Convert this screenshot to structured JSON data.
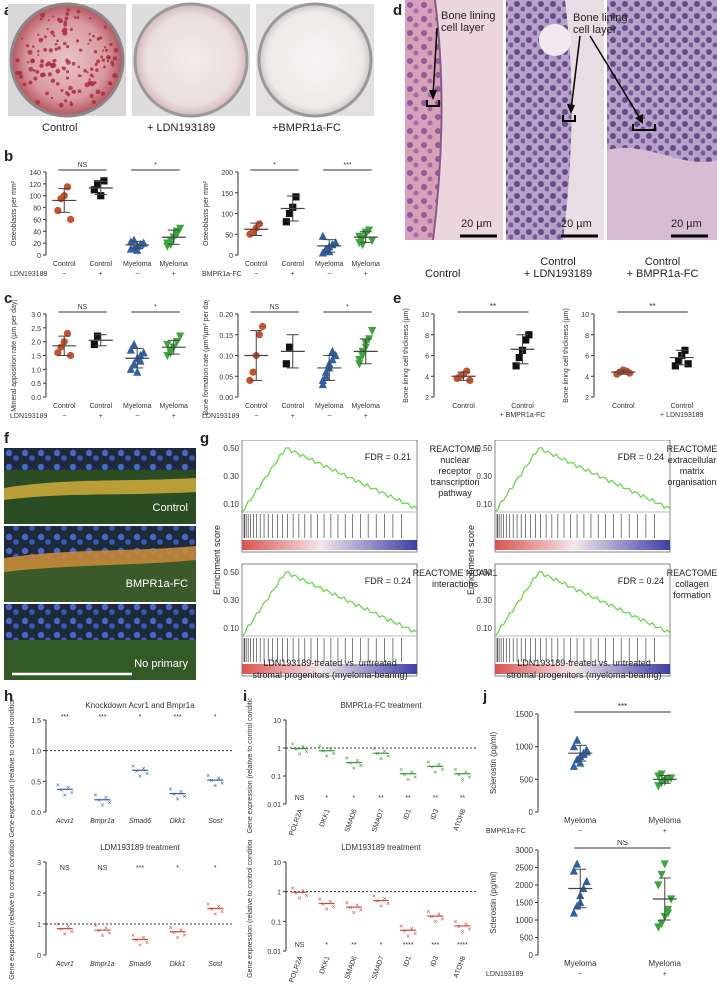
{
  "panels": {
    "a": {
      "label": "a",
      "captions": [
        "Control",
        "+ LDN193189",
        "+BMPR1a-FC"
      ]
    },
    "b": {
      "label": "b",
      "charts": [
        {
          "ylabel": "Osteoblasts per mm²",
          "yticks": [
            "0",
            "20",
            "40",
            "60",
            "80",
            "100",
            "120",
            "140"
          ],
          "treatment": "LDN193189",
          "groups": [
            "Control",
            "Control",
            "Myeloma",
            "Myeloma"
          ],
          "signs": [
            "−",
            "+",
            "−",
            "+"
          ],
          "sig": [
            "NS",
            "*"
          ]
        },
        {
          "ylabel": "Osteoblasts per mm²",
          "yticks": [
            "0",
            "50",
            "100",
            "150",
            "200"
          ],
          "treatment": "BMPR1a-FC",
          "groups": [
            "Control",
            "Control",
            "Myeloma",
            "Myeloma"
          ],
          "signs": [
            "−",
            "+",
            "−",
            "+"
          ],
          "sig": [
            "*",
            "***"
          ]
        }
      ]
    },
    "c": {
      "label": "c",
      "charts": [
        {
          "ylabel": "Mineral apposition rate (µm per day)",
          "yticks": [
            "0.0",
            "0.5",
            "1.0",
            "1.5",
            "2.0",
            "2.5",
            "3.0"
          ],
          "treatment": "LDN193189",
          "groups": [
            "Control",
            "Control",
            "Myeloma",
            "Myeloma"
          ],
          "signs": [
            "−",
            "+",
            "−",
            "+"
          ],
          "sig": [
            "NS",
            "*"
          ]
        },
        {
          "ylabel": "Bone formation rate (µm³/µm² per day)",
          "yticks": [
            "0.00",
            "0.05",
            "0.10",
            "0.15",
            "0.20"
          ],
          "treatment": "LDN193189",
          "groups": [
            "Control",
            "Control",
            "Myeloma",
            "Myeloma"
          ],
          "signs": [
            "−",
            "+",
            "−",
            "+"
          ],
          "sig": [
            "NS",
            "*"
          ]
        }
      ]
    },
    "d": {
      "label": "d",
      "annot": "Bone lining cell layer",
      "scale": "20 µm",
      "captions": [
        "Control",
        "Control\n+ LDN193189",
        "Control\n+ BMPR1a-FC"
      ]
    },
    "e": {
      "label": "e",
      "charts": [
        {
          "ylabel": "Bone lining cell thickness (µm)",
          "yticks": [
            "2",
            "4",
            "6",
            "8",
            "10"
          ],
          "groups": [
            "Control",
            "Control\n+ BMPR1a-FC"
          ],
          "sig": "**"
        },
        {
          "ylabel": "Bone lining cell thickness (µm)",
          "yticks": [
            "2",
            "4",
            "6",
            "8",
            "10"
          ],
          "groups": [
            "Control",
            "Control\n+ LDN193189"
          ],
          "sig": "**"
        }
      ]
    },
    "f": {
      "label": "f",
      "captions": [
        "Control",
        "BMPR1a-FC",
        "No primary"
      ]
    },
    "g": {
      "label": "g",
      "ylabel": "Enrichment score",
      "yticks": [
        "0.50",
        "0.30",
        "0.10"
      ],
      "xlabel": "LDN193189-treated vs. untreated stromal progenitors (myeloma-bearing)",
      "plots": [
        {
          "fdr": "FDR = 0.21",
          "title": "REACTOME nuclear receptor transcription pathway"
        },
        {
          "fdr": "FDR = 0.24",
          "title": "REACTOME NCAM1 interactions"
        },
        {
          "fdr": "FDR = 0.24",
          "title": "REACTOME extracellular matrix organisation"
        },
        {
          "fdr": "FDR = 0.24",
          "title": "REACTOME collagen formation"
        }
      ]
    },
    "h": {
      "label": "h",
      "ylabel": "Gene expression (relative to control condition)",
      "charts": [
        {
          "title": "Knockdown Acvr1 and Bmpr1a",
          "yticks": [
            "0.0",
            "0.5",
            "1.0",
            "1.5"
          ],
          "genes": [
            "Acvr1",
            "Bmpr1a",
            "Smad6",
            "Dkk1",
            "Sost"
          ],
          "sig": [
            "***",
            "***",
            "*",
            "***",
            "*"
          ]
        },
        {
          "title": "LDM193189 treatment",
          "yticks": [
            "0",
            "1",
            "2",
            "3"
          ],
          "genes": [
            "Acvr1",
            "Bmpr1a",
            "Smad6",
            "Dkk1",
            "Sost"
          ],
          "sig": [
            "NS",
            "NS",
            "***",
            "*",
            "*"
          ]
        }
      ]
    },
    "i": {
      "label": "i",
      "ylabel": "Gene expression (relative to control condition)",
      "charts": [
        {
          "title": "BMPR1a-FC treatment",
          "yticks": [
            "10",
            "1",
            "0.1",
            "0.01"
          ],
          "genes": [
            "POLR2A",
            "DKK1",
            "SMAD6",
            "SMAD7",
            "ID1",
            "ID3",
            "ATOH8"
          ],
          "sig": [
            "NS",
            "*",
            "*",
            "**",
            "**",
            "**",
            "**"
          ]
        },
        {
          "title": "LDM193189 treatment",
          "yticks": [
            "10",
            "1",
            "0.1",
            "0.01"
          ],
          "genes": [
            "POLR2A",
            "DKK1",
            "SMAD6",
            "SMAD7",
            "ID1",
            "ID3",
            "ATOH8"
          ],
          "sig": [
            "NS",
            "*",
            "**",
            "*",
            "****",
            "***",
            "****"
          ]
        }
      ]
    },
    "j": {
      "label": "j",
      "charts": [
        {
          "ylabel": "Sclerostin (pg/ml)",
          "yticks": [
            "0",
            "500",
            "1000",
            "1500"
          ],
          "groups": [
            "Myeloma",
            "Myeloma"
          ],
          "treatment": "BMPR1a-FC",
          "signs": [
            "−",
            "+"
          ],
          "sig": "***"
        },
        {
          "ylabel": "Sclerostin (pg/ml)",
          "yticks": [
            "0",
            "500",
            "1000",
            "1500",
            "2000",
            "2500",
            "3000"
          ],
          "groups": [
            "Myeloma",
            "Myeloma"
          ],
          "treatment": "LDN193189",
          "signs": [
            "−",
            "+"
          ],
          "sig": "NS"
        }
      ]
    }
  },
  "chart_data": [
    {
      "id": "b1",
      "type": "scatter",
      "ylim": [
        0,
        140
      ],
      "groups": [
        "Control",
        "Control",
        "Myeloma",
        "Myeloma"
      ],
      "colors": [
        "#c8502a",
        "#111111",
        "#2f5fa8",
        "#3aa53a"
      ],
      "markers": [
        "circle",
        "square",
        "triangle",
        "invtriangle"
      ],
      "values": [
        [
          75,
          95,
          100,
          115,
          60
        ],
        [
          110,
          120,
          100,
          125
        ],
        [
          10,
          12,
          15,
          18,
          20,
          22,
          25,
          8
        ],
        [
          15,
          25,
          30,
          35,
          45,
          20,
          18,
          30,
          40
        ]
      ],
      "mean": [
        92,
        113,
        17,
        30
      ],
      "sd": [
        20,
        11,
        6,
        12
      ]
    },
    {
      "id": "b2",
      "type": "scatter",
      "ylim": [
        0,
        200
      ],
      "groups": [
        "Control",
        "Control",
        "Myeloma",
        "Myeloma"
      ],
      "colors": [
        "#c8502a",
        "#111111",
        "#2f5fa8",
        "#3aa53a"
      ],
      "markers": [
        "circle",
        "square",
        "triangle",
        "invtriangle"
      ],
      "values": [
        [
          50,
          55,
          65,
          75
        ],
        [
          80,
          100,
          115,
          140
        ],
        [
          5,
          10,
          20,
          25,
          30,
          45,
          15,
          8
        ],
        [
          30,
          40,
          50,
          60,
          35,
          45,
          25,
          55
        ]
      ],
      "mean": [
        62,
        112,
        22,
        43
      ],
      "sd": [
        15,
        30,
        15,
        13
      ]
    },
    {
      "id": "c1",
      "type": "scatter",
      "ylim": [
        0,
        3
      ],
      "groups": [
        "Control",
        "Control",
        "Myeloma",
        "Myeloma"
      ],
      "colors": [
        "#c8502a",
        "#111111",
        "#2f5fa8",
        "#3aa53a"
      ],
      "markers": [
        "circle",
        "square",
        "triangle",
        "invtriangle"
      ],
      "values": [
        [
          1.6,
          1.8,
          2.0,
          2.3,
          1.5
        ],
        [
          1.9,
          2.2
        ],
        [
          1.0,
          1.2,
          1.4,
          1.5,
          1.6,
          1.7,
          1.9,
          0.9,
          1.3
        ],
        [
          1.5,
          1.7,
          1.8,
          2.0,
          2.2,
          1.9,
          1.6,
          1.8
        ]
      ],
      "mean": [
        1.85,
        2.05,
        1.4,
        1.8
      ],
      "sd": [
        0.35,
        0.2,
        0.35,
        0.25
      ]
    },
    {
      "id": "c2",
      "type": "scatter",
      "ylim": [
        0,
        0.2
      ],
      "groups": [
        "Control",
        "Control",
        "Myeloma",
        "Myeloma"
      ],
      "colors": [
        "#c8502a",
        "#111111",
        "#2f5fa8",
        "#3aa53a"
      ],
      "markers": [
        "circle",
        "square",
        "triangle",
        "invtriangle"
      ],
      "values": [
        [
          0.04,
          0.06,
          0.1,
          0.15,
          0.17
        ],
        [
          0.08,
          0.12
        ],
        [
          0.03,
          0.05,
          0.07,
          0.09,
          0.1,
          0.04,
          0.06,
          0.08,
          0.11
        ],
        [
          0.08,
          0.1,
          0.12,
          0.14,
          0.16,
          0.09,
          0.11,
          0.13
        ]
      ],
      "mean": [
        0.1,
        0.11,
        0.07,
        0.11
      ],
      "sd": [
        0.06,
        0.04,
        0.03,
        0.03
      ]
    },
    {
      "id": "e1",
      "type": "scatter",
      "ylim": [
        2,
        10
      ],
      "groups": [
        "Control",
        "Control + BMPR1a-FC"
      ],
      "colors": [
        "#c8502a",
        "#111111"
      ],
      "markers": [
        "circle",
        "square"
      ],
      "values": [
        [
          3.8,
          4.0,
          4.2,
          4.5,
          3.6
        ],
        [
          5.0,
          5.8,
          6.5,
          7.5,
          8.0
        ]
      ],
      "mean": [
        4.0,
        6.6
      ],
      "sd": [
        0.4,
        1.4
      ]
    },
    {
      "id": "e2",
      "type": "scatter",
      "ylim": [
        2,
        10
      ],
      "groups": [
        "Control",
        "Control + LDN193189"
      ],
      "colors": [
        "#c8502a",
        "#111111"
      ],
      "markers": [
        "circle",
        "square"
      ],
      "values": [
        [
          4.2,
          4.4,
          4.6,
          4.5,
          4.3
        ],
        [
          5.0,
          5.5,
          6.0,
          6.5,
          5.2
        ]
      ],
      "mean": [
        4.4,
        5.8
      ],
      "sd": [
        0.2,
        0.7
      ]
    },
    {
      "id": "j1",
      "type": "scatter",
      "ylim": [
        0,
        1500
      ],
      "groups": [
        "Myeloma",
        "Myeloma"
      ],
      "colors": [
        "#2f5fa8",
        "#3aa53a"
      ],
      "markers": [
        "triangle",
        "invtriangle"
      ],
      "values": [
        [
          700,
          800,
          850,
          900,
          950,
          1000,
          1100,
          750,
          880,
          920
        ],
        [
          400,
          450,
          480,
          500,
          520,
          550,
          580,
          470,
          510
        ]
      ],
      "mean": [
        900,
        500
      ],
      "sd": [
        120,
        60
      ]
    },
    {
      "id": "j2",
      "type": "scatter",
      "ylim": [
        0,
        3000
      ],
      "groups": [
        "Myeloma",
        "Myeloma"
      ],
      "colors": [
        "#2f5fa8",
        "#3aa53a"
      ],
      "markers": [
        "triangle",
        "invtriangle"
      ],
      "values": [
        [
          1200,
          1400,
          1700,
          1900,
          2100,
          2400,
          2600,
          1500
        ],
        [
          800,
          900,
          1100,
          1300,
          1600,
          2000,
          2300,
          2600,
          1200
        ]
      ],
      "mean": [
        1900,
        1600
      ],
      "sd": [
        550,
        600
      ]
    }
  ]
}
